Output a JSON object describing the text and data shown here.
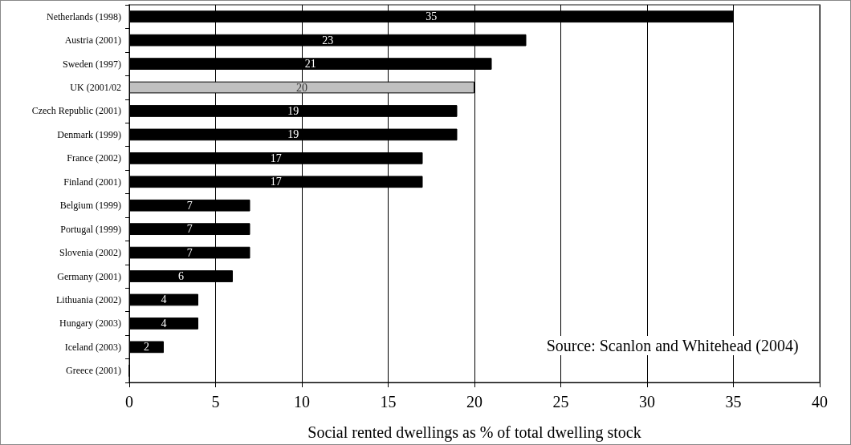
{
  "chart_data": {
    "type": "bar",
    "orientation": "horizontal",
    "xlabel": "Social rented dwellings as % of total dwelling stock",
    "categories": [
      "Netherlands (1998)",
      "Austria (2001)",
      "Sweden (1997)",
      "UK (2001/02",
      "Czech Republic (2001)",
      "Denmark (1999)",
      "France (2002)",
      "Finland (2001)",
      "Belgium (1999)",
      "Portugal (1999)",
      "Slovenia (2002)",
      "Germany (2001)",
      "Lithuania (2002)",
      "Hungary (2003)",
      "Iceland (2003)",
      "Greece (2001)"
    ],
    "values": [
      35,
      23,
      21,
      20,
      19,
      19,
      17,
      17,
      7,
      7,
      7,
      6,
      4,
      4,
      2,
      0
    ],
    "value_labels": [
      "35",
      "23",
      "21",
      "20",
      "19",
      "19",
      "17",
      "17",
      "7",
      "7",
      "7",
      "6",
      "4",
      "4",
      "2",
      null
    ],
    "colors": [
      "#000000",
      "#000000",
      "#000000",
      "#c0c0c0",
      "#000000",
      "#000000",
      "#000000",
      "#000000",
      "#000000",
      "#000000",
      "#000000",
      "#000000",
      "#000000",
      "#000000",
      "#000000",
      "#000000"
    ],
    "xlim": [
      0,
      40
    ],
    "xticks": [
      0,
      5,
      10,
      15,
      20,
      25,
      30,
      35,
      40
    ],
    "grid": "x",
    "annotations": [
      "Source: Scanlon and Whitehead (2004)"
    ]
  }
}
